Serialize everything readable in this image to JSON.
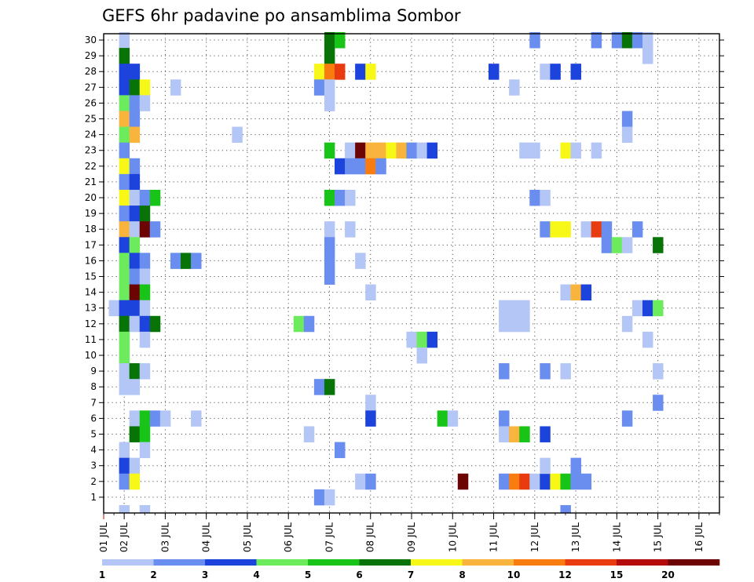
{
  "chart_data": {
    "type": "heatmap",
    "title": "GEFS 6hr padavine po ansamblima Sombor",
    "xlabel": "",
    "ylabel": "",
    "x_tick_labels": [
      "01 JUL",
      "02 JUL",
      "03 JUL",
      "04 JUL",
      "05 JUL",
      "06 JUL",
      "07 JUL",
      "08 JUL",
      "09 JUL",
      "10 JUL",
      "11 JUL",
      "12 JUL",
      "13 JUL",
      "14 JUL",
      "15 JUL",
      "16 JUL"
    ],
    "y_tick_labels": [
      "1",
      "2",
      "3",
      "4",
      "5",
      "6",
      "7",
      "8",
      "9",
      "10",
      "11",
      "12",
      "13",
      "14",
      "15",
      "16",
      "17",
      "18",
      "19",
      "20",
      "21",
      "22",
      "23",
      "24",
      "25",
      "26",
      "27",
      "28",
      "29",
      "30"
    ],
    "xlim": [
      0,
      60
    ],
    "ylim": [
      0,
      30
    ],
    "grid": true,
    "colorbar": {
      "levels": [
        "1",
        "2",
        "3",
        "4",
        "5",
        "6",
        "7",
        "8",
        "10",
        "12",
        "15",
        "20"
      ],
      "colors": [
        "#b4c6f6",
        "#6a8ef0",
        "#1c44dc",
        "#6cec5c",
        "#18c418",
        "#087408",
        "#f8f818",
        "#f8b43c",
        "#f87c10",
        "#e83c10",
        "#b40c0c",
        "#6c0404"
      ]
    },
    "cells": [
      [
        1,
        30,
        0
      ],
      [
        1,
        29,
        5
      ],
      [
        1,
        28,
        2
      ],
      [
        2,
        28,
        2
      ],
      [
        1,
        27,
        2
      ],
      [
        2,
        27,
        5
      ],
      [
        3,
        27,
        6
      ],
      [
        1,
        26,
        3
      ],
      [
        2,
        26,
        1
      ],
      [
        3,
        26,
        0
      ],
      [
        1,
        25,
        7
      ],
      [
        2,
        25,
        1
      ],
      [
        1,
        24,
        3
      ],
      [
        2,
        24,
        7
      ],
      [
        1,
        23,
        1
      ],
      [
        1,
        22,
        6
      ],
      [
        2,
        22,
        1
      ],
      [
        1,
        21,
        1
      ],
      [
        2,
        21,
        2
      ],
      [
        1,
        20,
        6
      ],
      [
        2,
        20,
        0
      ],
      [
        3,
        20,
        1
      ],
      [
        4,
        20,
        4
      ],
      [
        1,
        19,
        1
      ],
      [
        2,
        19,
        2
      ],
      [
        3,
        19,
        5
      ],
      [
        1,
        18,
        7
      ],
      [
        2,
        18,
        0
      ],
      [
        3,
        18,
        11
      ],
      [
        4,
        18,
        1
      ],
      [
        1,
        17,
        2
      ],
      [
        2,
        17,
        3
      ],
      [
        1,
        16,
        3
      ],
      [
        2,
        16,
        2
      ],
      [
        3,
        16,
        1
      ],
      [
        1,
        15,
        3
      ],
      [
        2,
        15,
        1
      ],
      [
        3,
        15,
        0
      ],
      [
        1,
        14,
        3
      ],
      [
        2,
        14,
        11
      ],
      [
        3,
        14,
        4
      ],
      [
        0,
        13,
        0
      ],
      [
        1,
        13,
        2
      ],
      [
        2,
        13,
        2
      ],
      [
        3,
        13,
        0
      ],
      [
        1,
        12,
        5
      ],
      [
        2,
        12,
        0
      ],
      [
        3,
        12,
        2
      ],
      [
        4,
        12,
        5
      ],
      [
        1,
        11,
        3
      ],
      [
        3,
        11,
        0
      ],
      [
        1,
        10,
        3
      ],
      [
        1,
        9,
        0
      ],
      [
        2,
        9,
        5
      ],
      [
        3,
        9,
        0
      ],
      [
        1,
        8,
        0
      ],
      [
        2,
        8,
        0
      ],
      [
        2,
        6,
        0
      ],
      [
        3,
        6,
        4
      ],
      [
        4,
        6,
        1
      ],
      [
        5,
        6,
        0
      ],
      [
        2,
        5,
        5
      ],
      [
        3,
        5,
        4
      ],
      [
        1,
        4,
        0
      ],
      [
        3,
        4,
        0
      ],
      [
        1,
        3,
        2
      ],
      [
        2,
        3,
        0
      ],
      [
        1,
        2,
        1
      ],
      [
        2,
        2,
        6
      ],
      [
        1,
        0,
        0
      ],
      [
        3,
        0,
        0
      ],
      [
        6,
        27,
        0
      ],
      [
        6,
        16,
        1
      ],
      [
        7,
        16,
        5
      ],
      [
        8,
        16,
        1
      ],
      [
        8,
        6,
        0
      ],
      [
        12,
        24,
        0
      ],
      [
        18,
        12,
        3
      ],
      [
        19,
        12,
        1
      ],
      [
        19,
        5,
        0
      ],
      [
        21,
        30,
        5
      ],
      [
        22,
        30,
        4
      ],
      [
        21,
        29,
        5
      ],
      [
        20,
        28,
        6
      ],
      [
        21,
        28,
        8
      ],
      [
        22,
        28,
        9
      ],
      [
        24,
        28,
        2
      ],
      [
        25,
        28,
        6
      ],
      [
        20,
        27,
        1
      ],
      [
        21,
        27,
        0
      ],
      [
        21,
        26,
        0
      ],
      [
        21,
        23,
        4
      ],
      [
        23,
        23,
        0
      ],
      [
        24,
        23,
        11
      ],
      [
        25,
        23,
        7
      ],
      [
        26,
        23,
        7
      ],
      [
        27,
        23,
        6
      ],
      [
        28,
        23,
        7
      ],
      [
        29,
        23,
        1
      ],
      [
        30,
        23,
        0
      ],
      [
        31,
        23,
        2
      ],
      [
        22,
        22,
        2
      ],
      [
        23,
        22,
        1
      ],
      [
        24,
        22,
        1
      ],
      [
        25,
        22,
        8
      ],
      [
        26,
        22,
        1
      ],
      [
        21,
        20,
        4
      ],
      [
        22,
        20,
        1
      ],
      [
        23,
        20,
        0
      ],
      [
        21,
        18,
        0
      ],
      [
        23,
        18,
        0
      ],
      [
        21,
        17,
        1
      ],
      [
        21,
        16,
        1
      ],
      [
        24,
        16,
        0
      ],
      [
        21,
        15,
        1
      ],
      [
        25,
        14,
        0
      ],
      [
        20,
        8,
        1
      ],
      [
        21,
        8,
        5
      ],
      [
        22,
        4,
        1
      ],
      [
        25,
        7,
        0
      ],
      [
        25,
        6,
        2
      ],
      [
        24,
        2,
        0
      ],
      [
        25,
        2,
        1
      ],
      [
        20,
        1,
        1
      ],
      [
        21,
        1,
        0
      ],
      [
        29,
        11,
        0
      ],
      [
        30,
        11,
        3
      ],
      [
        31,
        11,
        2
      ],
      [
        30,
        10,
        0
      ],
      [
        32,
        6,
        4
      ],
      [
        33,
        6,
        0
      ],
      [
        34,
        2,
        11
      ],
      [
        37,
        28,
        2
      ],
      [
        39,
        27,
        0
      ],
      [
        40,
        23,
        0
      ],
      [
        41,
        23,
        0
      ],
      [
        38,
        13,
        0
      ],
      [
        39,
        13,
        0
      ],
      [
        40,
        13,
        0
      ],
      [
        38,
        12,
        0
      ],
      [
        39,
        12,
        0
      ],
      [
        40,
        12,
        0
      ],
      [
        38,
        9,
        1
      ],
      [
        38,
        6,
        1
      ],
      [
        38,
        5,
        0
      ],
      [
        39,
        5,
        7
      ],
      [
        40,
        5,
        4
      ],
      [
        42,
        5,
        2
      ],
      [
        38,
        2,
        1
      ],
      [
        39,
        2,
        8
      ],
      [
        40,
        2,
        9
      ],
      [
        41,
        2,
        0
      ],
      [
        42,
        2,
        2
      ],
      [
        43,
        2,
        6
      ],
      [
        44,
        2,
        4
      ],
      [
        41,
        30,
        1
      ],
      [
        41,
        20,
        1
      ],
      [
        42,
        20,
        0
      ],
      [
        42,
        18,
        1
      ],
      [
        43,
        18,
        6
      ],
      [
        44,
        18,
        6
      ],
      [
        44,
        23,
        6
      ],
      [
        45,
        23,
        0
      ],
      [
        42,
        28,
        0
      ],
      [
        43,
        28,
        2
      ],
      [
        45,
        28,
        2
      ],
      [
        42,
        9,
        1
      ],
      [
        44,
        9,
        0
      ],
      [
        42,
        3,
        0
      ],
      [
        45,
        3,
        1
      ],
      [
        45,
        2,
        1
      ],
      [
        46,
        2,
        1
      ],
      [
        44,
        14,
        0
      ],
      [
        45,
        14,
        7
      ],
      [
        46,
        14,
        2
      ],
      [
        44,
        0,
        1
      ],
      [
        47,
        30,
        1
      ],
      [
        49,
        30,
        1
      ],
      [
        50,
        30,
        5
      ],
      [
        51,
        30,
        1
      ],
      [
        52,
        30,
        0
      ],
      [
        52,
        29,
        0
      ],
      [
        47,
        23,
        0
      ],
      [
        46,
        18,
        0
      ],
      [
        47,
        18,
        9
      ],
      [
        48,
        18,
        1
      ],
      [
        51,
        18,
        1
      ],
      [
        48,
        17,
        1
      ],
      [
        49,
        17,
        3
      ],
      [
        50,
        17,
        0
      ],
      [
        53,
        17,
        5
      ],
      [
        50,
        25,
        1
      ],
      [
        50,
        24,
        0
      ],
      [
        51,
        13,
        0
      ],
      [
        52,
        13,
        2
      ],
      [
        53,
        13,
        3
      ],
      [
        50,
        12,
        0
      ],
      [
        52,
        11,
        0
      ],
      [
        53,
        9,
        0
      ],
      [
        53,
        7,
        1
      ],
      [
        50,
        6,
        1
      ]
    ]
  }
}
